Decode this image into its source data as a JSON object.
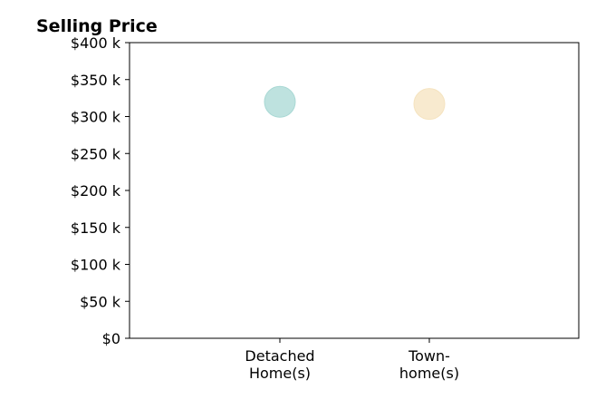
{
  "chart_data": {
    "type": "scatter",
    "title": "Selling Price",
    "xlabel": "",
    "ylabel": "",
    "categories": [
      [
        "Detached",
        "Home(s)"
      ],
      [
        "Town-",
        "home(s)"
      ]
    ],
    "points": [
      {
        "category": "Detached Home(s)",
        "value": 320000,
        "color": "#a8d8d4"
      },
      {
        "category": "Town-home(s)",
        "value": 317000,
        "color": "#f5e3bf"
      }
    ],
    "ylim": [
      0,
      400000
    ],
    "yticks": [
      0,
      50000,
      100000,
      150000,
      200000,
      250000,
      300000,
      350000,
      400000
    ],
    "ytick_labels": [
      "$0",
      "$50 k",
      "$100 k",
      "$150 k",
      "$200 k",
      "$250 k",
      "$300 k",
      "$350 k",
      "$400 k"
    ],
    "grid": false,
    "legend": "none"
  }
}
